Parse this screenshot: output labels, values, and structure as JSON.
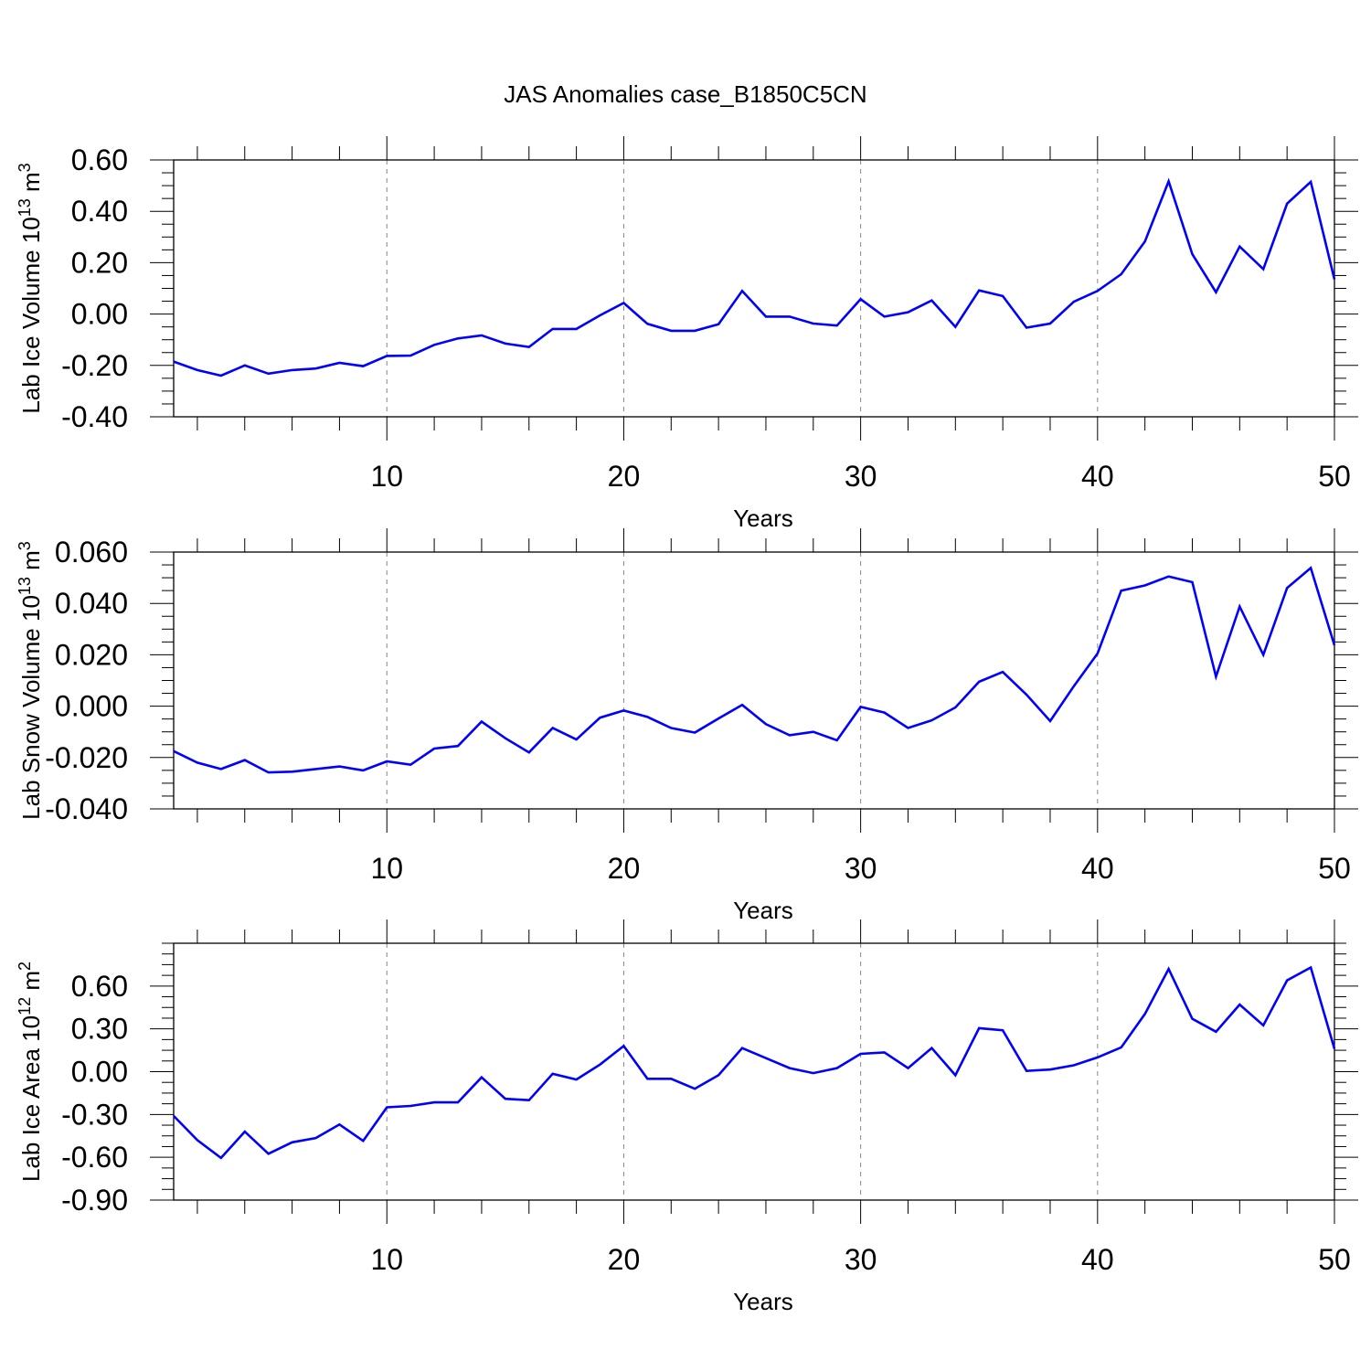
{
  "title": "JAS Anomalies case_B1850C5CN",
  "chart_data": [
    {
      "type": "line",
      "ylabel": "Lab Ice Volume 10",
      "ylabel_exp": "13",
      "ylabel_unit": " m",
      "ylabel_unit_exp": "3",
      "xlabel": "Years",
      "xlim": [
        1,
        50
      ],
      "ylim": [
        -0.4,
        0.6
      ],
      "xticks": [
        10,
        20,
        30,
        40,
        50
      ],
      "xtick_labels": [
        "10",
        "20",
        "30",
        "40",
        "50"
      ],
      "yticks": [
        -0.4,
        -0.2,
        0.0,
        0.2,
        0.4,
        0.6
      ],
      "ytick_labels": [
        "-0.40",
        "-0.20",
        "0.00",
        "0.20",
        "0.40",
        "0.60"
      ],
      "grid": "vertical dashed at major x ticks",
      "series": [
        {
          "color": "#0000ff",
          "x": [
            1,
            2,
            3,
            4,
            5,
            6,
            7,
            8,
            9,
            10,
            11,
            12,
            13,
            14,
            15,
            16,
            17,
            18,
            19,
            20,
            21,
            22,
            23,
            24,
            25,
            26,
            27,
            28,
            29,
            30,
            31,
            32,
            33,
            34,
            35,
            36,
            37,
            38,
            39,
            40,
            41,
            42,
            43,
            44,
            45,
            46,
            47,
            48,
            49,
            50
          ],
          "values": [
            -0.185,
            -0.218,
            -0.24,
            -0.2,
            -0.232,
            -0.218,
            -0.212,
            -0.19,
            -0.203,
            -0.163,
            -0.162,
            -0.12,
            -0.095,
            -0.083,
            -0.115,
            -0.128,
            -0.058,
            -0.058,
            -0.005,
            0.043,
            -0.038,
            -0.065,
            -0.065,
            -0.04,
            0.09,
            -0.01,
            -0.01,
            -0.037,
            -0.045,
            0.058,
            -0.01,
            0.007,
            0.053,
            -0.05,
            0.092,
            0.07,
            -0.053,
            -0.037,
            0.048,
            0.09,
            0.155,
            0.283,
            0.517,
            0.233,
            0.085,
            0.263,
            0.175,
            0.43,
            0.515,
            0.135
          ]
        }
      ]
    },
    {
      "type": "line",
      "ylabel": "Lab Snow Volume 10",
      "ylabel_exp": "13",
      "ylabel_unit": " m",
      "ylabel_unit_exp": "3",
      "xlabel": "Years",
      "xlim": [
        1,
        50
      ],
      "ylim": [
        -0.04,
        0.06
      ],
      "xticks": [
        10,
        20,
        30,
        40,
        50
      ],
      "xtick_labels": [
        "10",
        "20",
        "30",
        "40",
        "50"
      ],
      "yticks": [
        -0.04,
        -0.02,
        0.0,
        0.02,
        0.04,
        0.06
      ],
      "ytick_labels": [
        "-0.040",
        "-0.020",
        "0.000",
        "0.020",
        "0.040",
        "0.060"
      ],
      "grid": "vertical dashed at major x ticks",
      "series": [
        {
          "color": "#0000ff",
          "x": [
            1,
            2,
            3,
            4,
            5,
            6,
            7,
            8,
            9,
            10,
            11,
            12,
            13,
            14,
            15,
            16,
            17,
            18,
            19,
            20,
            21,
            22,
            23,
            24,
            25,
            26,
            27,
            28,
            29,
            30,
            31,
            32,
            33,
            34,
            35,
            36,
            37,
            38,
            39,
            40,
            41,
            42,
            43,
            44,
            45,
            46,
            47,
            48,
            49,
            50
          ],
          "values": [
            -0.0175,
            -0.022,
            -0.0245,
            -0.021,
            -0.0258,
            -0.0255,
            -0.0245,
            -0.0235,
            -0.025,
            -0.0215,
            -0.0228,
            -0.0165,
            -0.0155,
            -0.006,
            -0.0125,
            -0.018,
            -0.0085,
            -0.013,
            -0.0045,
            -0.0017,
            -0.0042,
            -0.0085,
            -0.0103,
            -0.0048,
            0.0005,
            -0.007,
            -0.0113,
            -0.01,
            -0.0133,
            -0.0003,
            -0.0025,
            -0.0085,
            -0.0055,
            -0.0005,
            0.0095,
            0.0133,
            0.0045,
            -0.0058,
            0.0078,
            0.0205,
            0.045,
            0.047,
            0.0505,
            0.0483,
            0.0115,
            0.0388,
            0.02,
            0.046,
            0.0538,
            0.0237
          ]
        }
      ]
    },
    {
      "type": "line",
      "ylabel": "Lab Ice Area 10",
      "ylabel_exp": "12",
      "ylabel_unit": " m",
      "ylabel_unit_exp": "2",
      "xlabel": "Years",
      "xlim": [
        1,
        50
      ],
      "ylim": [
        -0.9,
        0.9
      ],
      "xticks": [
        10,
        20,
        30,
        40,
        50
      ],
      "xtick_labels": [
        "10",
        "20",
        "30",
        "40",
        "50"
      ],
      "yticks": [
        -0.9,
        -0.6,
        -0.3,
        0.0,
        0.3,
        0.6
      ],
      "ytick_labels": [
        "-0.90",
        "-0.60",
        "-0.30",
        "0.00",
        "0.30",
        "0.60"
      ],
      "grid": "vertical dashed at major x ticks",
      "series": [
        {
          "color": "#0000ff",
          "x": [
            1,
            2,
            3,
            4,
            5,
            6,
            7,
            8,
            9,
            10,
            11,
            12,
            13,
            14,
            15,
            16,
            17,
            18,
            19,
            20,
            21,
            22,
            23,
            24,
            25,
            26,
            27,
            28,
            29,
            30,
            31,
            32,
            33,
            34,
            35,
            36,
            37,
            38,
            39,
            40,
            41,
            42,
            43,
            44,
            45,
            46,
            47,
            48,
            49,
            50
          ],
          "values": [
            -0.31,
            -0.48,
            -0.605,
            -0.42,
            -0.575,
            -0.495,
            -0.465,
            -0.37,
            -0.485,
            -0.25,
            -0.24,
            -0.215,
            -0.215,
            -0.04,
            -0.19,
            -0.2,
            -0.015,
            -0.055,
            0.05,
            0.18,
            -0.05,
            -0.05,
            -0.12,
            -0.025,
            0.165,
            0.095,
            0.025,
            -0.01,
            0.025,
            0.125,
            0.135,
            0.025,
            0.165,
            -0.025,
            0.305,
            0.29,
            0.005,
            0.015,
            0.045,
            0.1,
            0.17,
            0.405,
            0.72,
            0.37,
            0.28,
            0.47,
            0.325,
            0.64,
            0.73,
            0.16
          ]
        }
      ]
    }
  ]
}
